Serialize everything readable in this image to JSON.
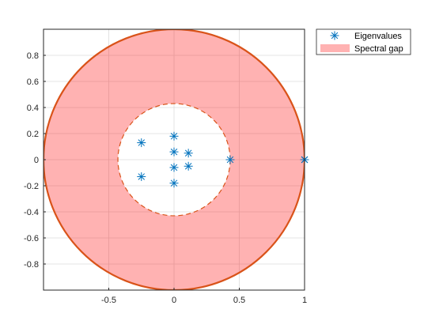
{
  "chart_data": {
    "type": "scatter",
    "title": "",
    "xlabel": "",
    "ylabel": "",
    "xlim": [
      -1,
      1
    ],
    "ylim": [
      -1,
      1
    ],
    "axis_equal": true,
    "grid": true,
    "box": true,
    "x_ticks": [
      -0.5,
      0,
      0.5,
      1
    ],
    "x_tick_labels": [
      "-0.5",
      "0",
      "0.5",
      "1"
    ],
    "y_ticks": [
      0.8,
      0.6,
      0.4,
      0.2,
      0,
      -0.2,
      -0.4,
      -0.6,
      -0.8
    ],
    "y_tick_labels": [
      "0.8",
      "0.6",
      "0.4",
      "0.2",
      "0",
      "-0.2",
      "-0.4",
      "-0.6",
      "-0.8"
    ],
    "legend_position": "outside-top-right",
    "legend": [
      "Eigenvalues",
      "Spectral gap"
    ],
    "series": [
      {
        "name": "Eigenvalues",
        "marker": "asterisk",
        "color": "#0072BD",
        "points": [
          [
            1.0,
            0.0
          ],
          [
            1.0,
            0.0
          ],
          [
            1.0,
            0.0
          ],
          [
            0.43,
            0.0
          ],
          [
            -0.25,
            0.13
          ],
          [
            -0.25,
            -0.13
          ],
          [
            0.0,
            0.18
          ],
          [
            0.0,
            -0.18
          ],
          [
            0.0,
            0.06
          ],
          [
            0.0,
            -0.06
          ],
          [
            0.11,
            0.05
          ],
          [
            0.11,
            -0.05
          ]
        ]
      },
      {
        "name": "Spectral gap",
        "kind": "annulus",
        "fill_color": "#FF0000",
        "fill_alpha": 0.3,
        "edge_color": "#D95319",
        "outer_radius": 1.0,
        "inner_radius": 0.43
      }
    ]
  }
}
